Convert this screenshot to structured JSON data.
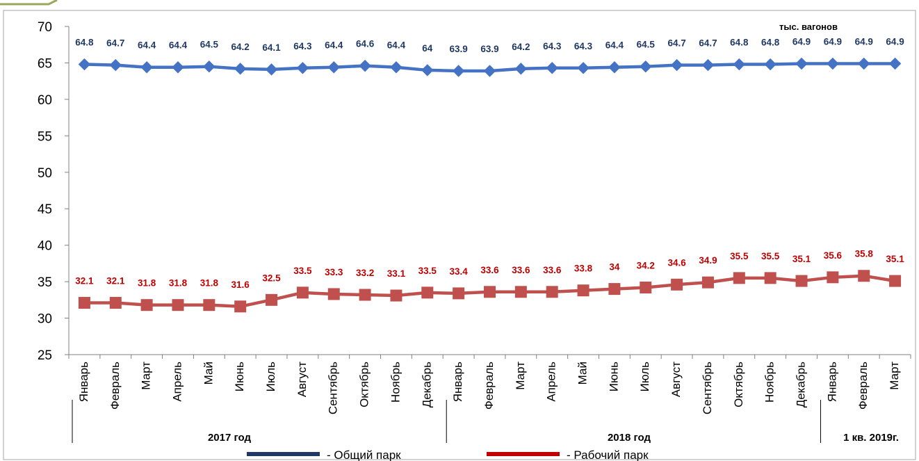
{
  "chart_data": {
    "type": "line",
    "unit_label": "тыс. вагонов",
    "ylim": [
      25,
      70
    ],
    "yticks": [
      25,
      30,
      35,
      40,
      45,
      50,
      55,
      60,
      65,
      70
    ],
    "grid": false,
    "legend_position": "bottom",
    "categories": [
      "Январь",
      "Февраль",
      "Март",
      "Апрель",
      "Май",
      "Июнь",
      "Июль",
      "Август",
      "Сентябрь",
      "Октябрь",
      "Ноябрь",
      "Декабрь",
      "Январь",
      "Февраль",
      "Март",
      "Апрель",
      "Май",
      "Июнь",
      "Июль",
      "Август",
      "Сентябрь",
      "Октябрь",
      "Ноябрь",
      "Декабрь",
      "Январь",
      "Февраль",
      "Март"
    ],
    "groups": [
      {
        "label": "2017 год",
        "start": 0,
        "count": 12
      },
      {
        "label": "2018 год",
        "start": 12,
        "count": 12
      },
      {
        "label": "1 кв. 2019г.",
        "start": 24,
        "count": 3
      }
    ],
    "series": [
      {
        "name": "- Общий парк",
        "color": "#4472C4",
        "line_color": "#1F3864",
        "label_color": "#1F3864",
        "marker": "diamond",
        "values": [
          64.8,
          64.7,
          64.4,
          64.4,
          64.5,
          64.2,
          64.1,
          64.3,
          64.4,
          64.6,
          64.4,
          64,
          63.9,
          63.9,
          64.2,
          64.3,
          64.3,
          64.4,
          64.5,
          64.7,
          64.7,
          64.8,
          64.8,
          64.9,
          64.9,
          64.9,
          64.9
        ]
      },
      {
        "name": "- Рабочий парк",
        "color": "#C0504D",
        "line_color": "#C00000",
        "label_color": "#C00000",
        "marker": "square",
        "values": [
          32.1,
          32.1,
          31.8,
          31.8,
          31.8,
          31.6,
          32.5,
          33.5,
          33.3,
          33.2,
          33.1,
          33.5,
          33.4,
          33.6,
          33.6,
          33.6,
          33.8,
          34,
          34.2,
          34.6,
          34.9,
          35.5,
          35.5,
          35.1,
          35.6,
          35.8,
          35.1
        ]
      }
    ]
  }
}
